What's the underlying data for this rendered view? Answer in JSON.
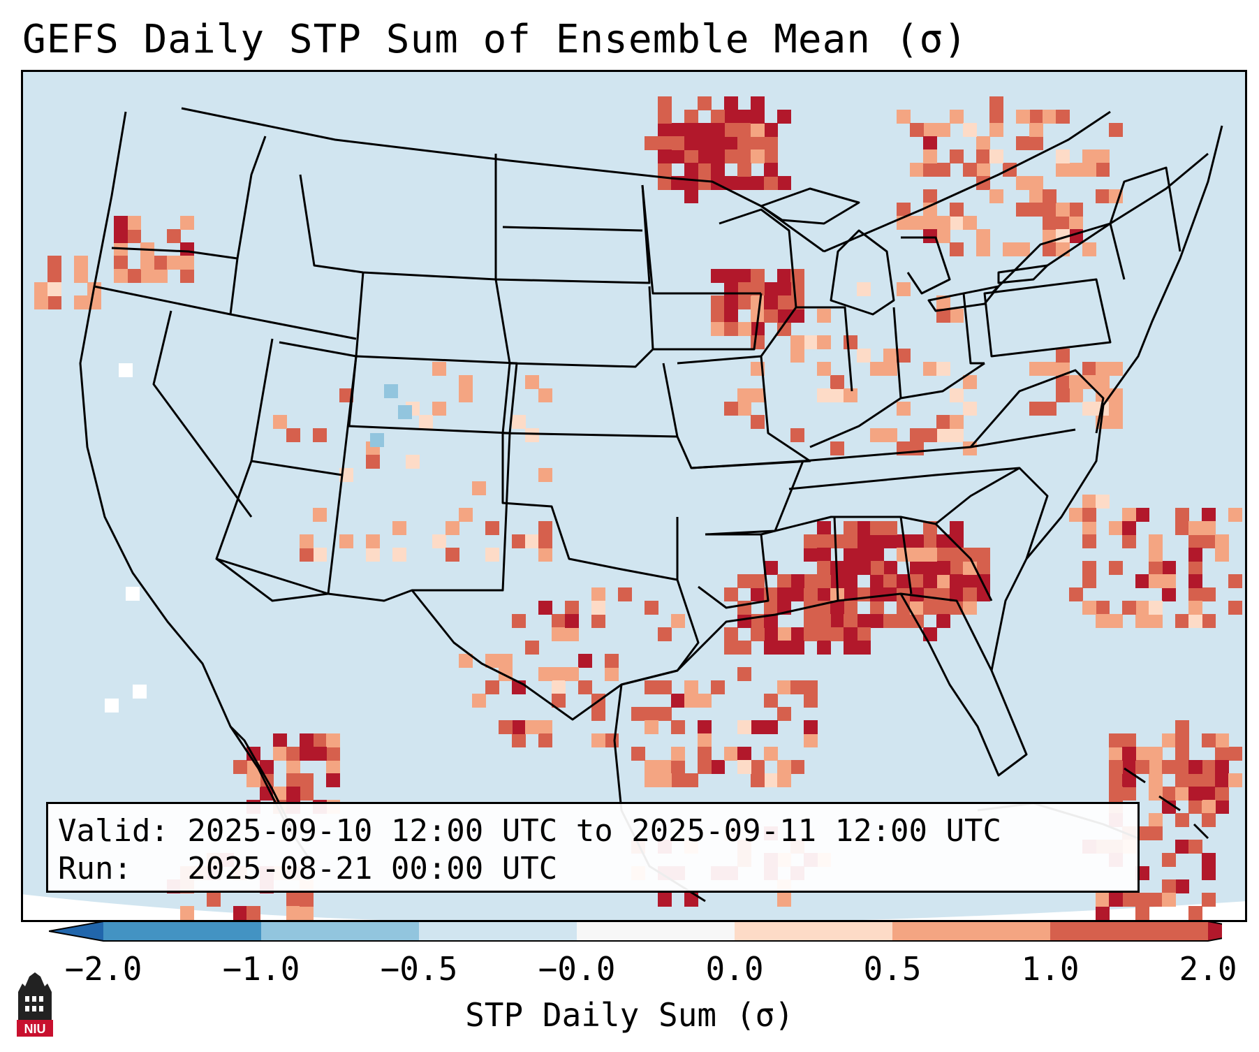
{
  "title": "GEFS Daily STP Sum of Ensemble Mean (σ)",
  "info": {
    "valid_line": "Valid: 2025-09-10 12:00 UTC to 2025-09-11 12:00 UTC",
    "run_line": "Run:   2025-08-21 00:00 UTC"
  },
  "colorbar": {
    "label": "STP Daily Sum (σ)",
    "ticks": [
      "−2.0",
      "−1.0",
      "−0.5",
      "−0.0",
      "0.0",
      "0.5",
      "1.0",
      "2.0"
    ],
    "colors": [
      "#4393c3",
      "#92c5de",
      "#d1e5f0",
      "#f7f7f7",
      "#fddbc7",
      "#f4a582",
      "#d6604d"
    ],
    "extend_low_color": "#2166ac",
    "extend_high_color": "#b2182b"
  },
  "map": {
    "ocean_color": "#d1e5f0",
    "land_color": "#d1e5f0",
    "region": "Contiguous United States",
    "hotspots": [
      {
        "area": "Alabama / Mississippi / Georgia",
        "level": "2.0"
      },
      {
        "area": "Upper Midwest / Minnesota",
        "level": "2.0"
      },
      {
        "area": "Wisconsin",
        "level": "1.0"
      },
      {
        "area": "Northern Mexico",
        "level": "1.0"
      },
      {
        "area": "Western Atlantic",
        "level": "1.0"
      }
    ]
  },
  "logo": {
    "text": "NIU",
    "color": "#c8102e"
  }
}
